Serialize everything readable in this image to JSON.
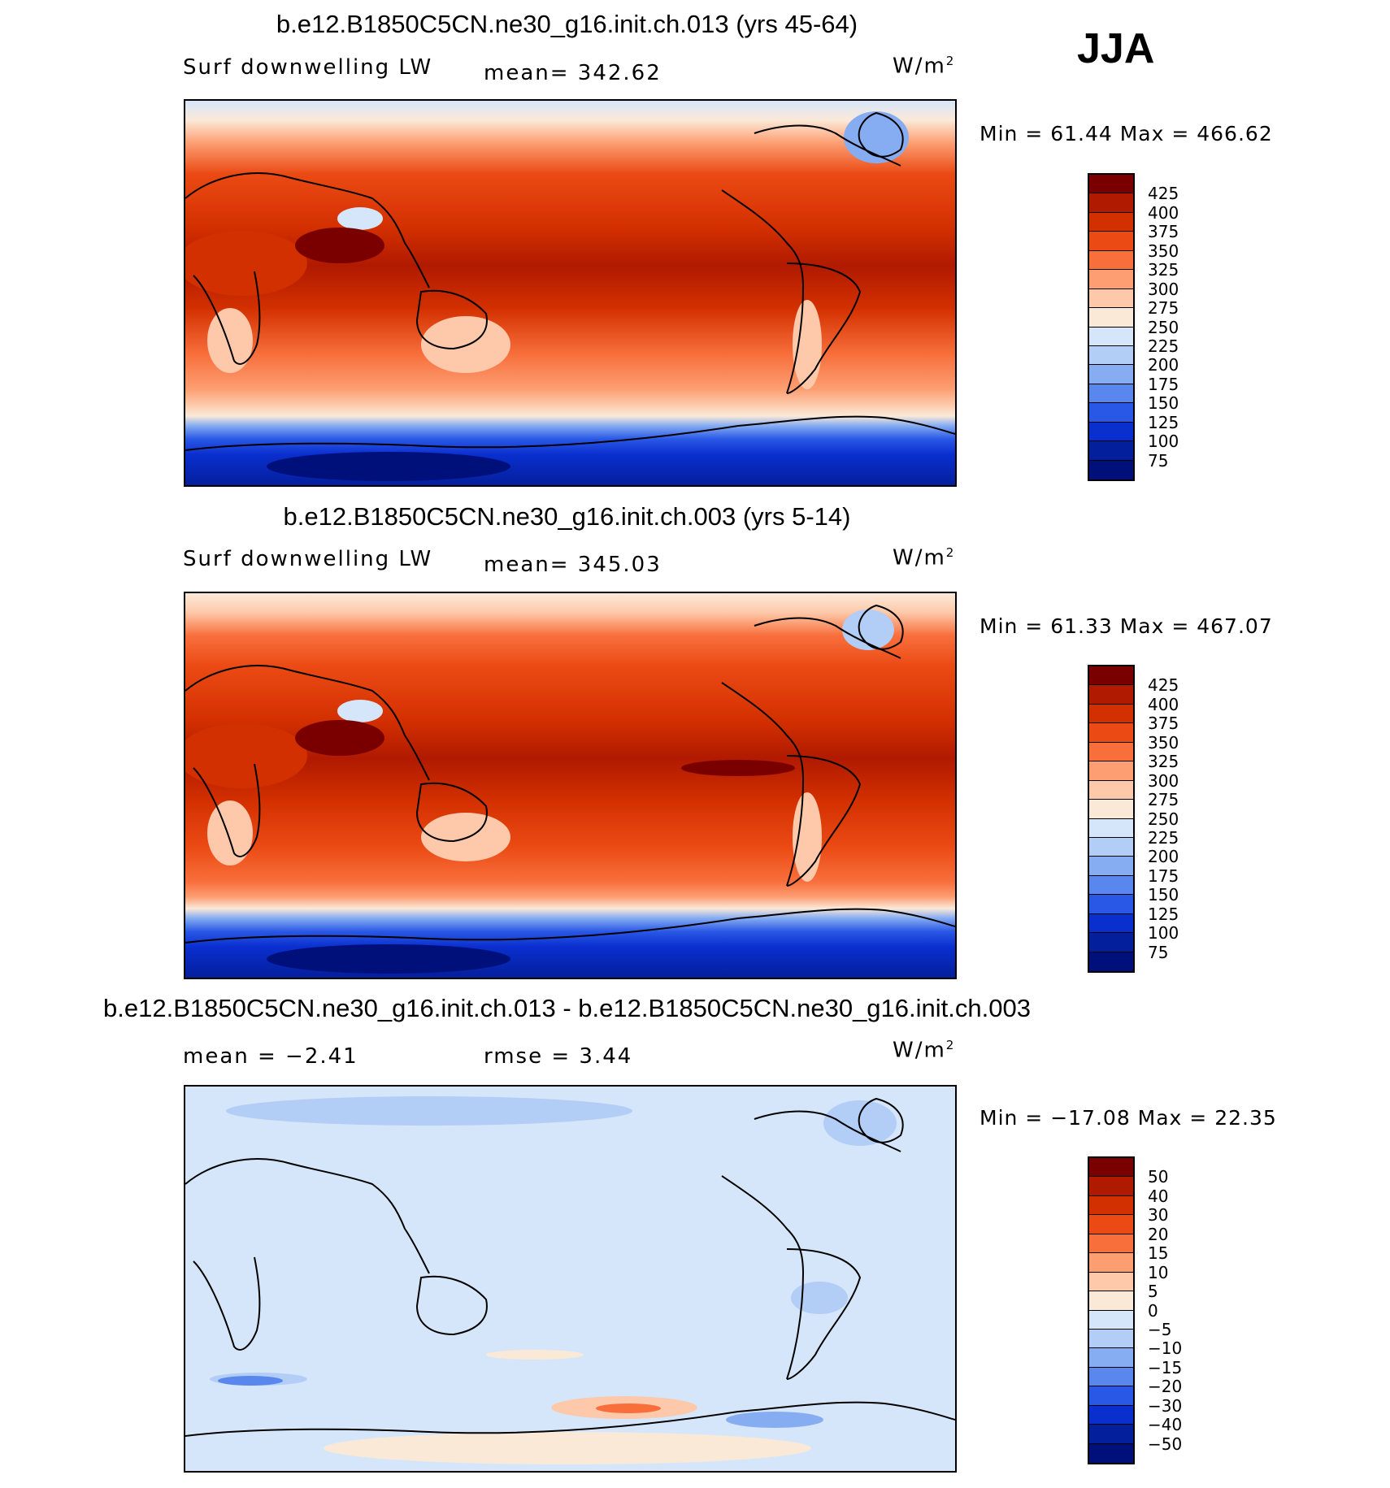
{
  "season": "JJA",
  "panels": [
    {
      "title": "b.e12.B1850C5CN.ne30_g16.init.ch.013 (yrs 45-64)",
      "left_text": "Surf downwelling LW",
      "center_text": "mean= 342.62",
      "units": "W/m",
      "units_exp": "2",
      "minmax": "Min =   61.44 Max = 466.62",
      "colorbar_labels": [
        "425",
        "400",
        "375",
        "350",
        "325",
        "300",
        "275",
        "250",
        "225",
        "200",
        "175",
        "150",
        "125",
        "100",
        "75"
      ],
      "palette": [
        "#7a0000",
        "#b01a00",
        "#d33000",
        "#eb4a14",
        "#f86f3c",
        "#fc9e72",
        "#fdc9aa",
        "#fbe9d8",
        "#d6e6fa",
        "#b2cdf6",
        "#86adf2",
        "#5a87ee",
        "#2a58e6",
        "#0a2fcf",
        "#041f9c",
        "#00107a"
      ]
    },
    {
      "title": "b.e12.B1850C5CN.ne30_g16.init.ch.003 (yrs 5-14)",
      "left_text": "Surf downwelling LW",
      "center_text": "mean= 345.03",
      "units": "W/m",
      "units_exp": "2",
      "minmax": "Min =   61.33 Max = 467.07",
      "colorbar_labels": [
        "425",
        "400",
        "375",
        "350",
        "325",
        "300",
        "275",
        "250",
        "225",
        "200",
        "175",
        "150",
        "125",
        "100",
        "75"
      ],
      "palette": [
        "#7a0000",
        "#b01a00",
        "#d33000",
        "#eb4a14",
        "#f86f3c",
        "#fc9e72",
        "#fdc9aa",
        "#fbe9d8",
        "#d6e6fa",
        "#b2cdf6",
        "#86adf2",
        "#5a87ee",
        "#2a58e6",
        "#0a2fcf",
        "#041f9c",
        "#00107a"
      ]
    },
    {
      "title": "b.e12.B1850C5CN.ne30_g16.init.ch.013 - b.e12.B1850C5CN.ne30_g16.init.ch.003",
      "left_text": "mean =   −2.41",
      "center_text": "rmse =    3.44",
      "units": "W/m",
      "units_exp": "2",
      "minmax": "Min = −17.08 Max =   22.35",
      "colorbar_labels": [
        "50",
        "40",
        "30",
        "20",
        "15",
        "10",
        "5",
        "0",
        "−5",
        "−10",
        "−15",
        "−20",
        "−30",
        "−40",
        "−50"
      ],
      "palette": [
        "#7a0000",
        "#b01a00",
        "#d33000",
        "#eb4a14",
        "#f86f3c",
        "#fc9e72",
        "#fdc9aa",
        "#fbe9d8",
        "#d6e6fa",
        "#b2cdf6",
        "#86adf2",
        "#5a87ee",
        "#2a58e6",
        "#0a2fcf",
        "#041f9c",
        "#00107a"
      ]
    }
  ]
}
